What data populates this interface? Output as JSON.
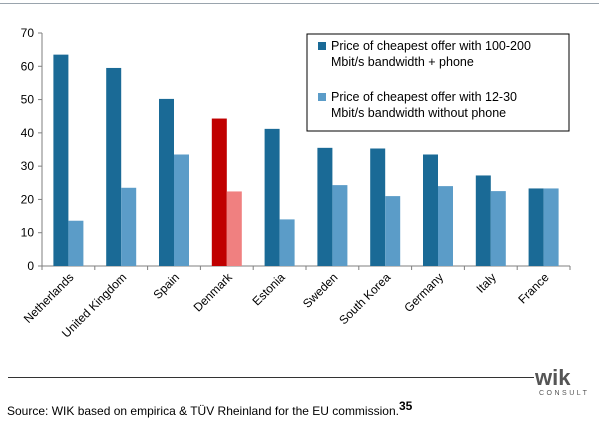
{
  "chart_data": {
    "type": "bar",
    "categories": [
      "Netherlands",
      "United Kingdom",
      "Spain",
      "Denmark",
      "Estonia",
      "Sweden",
      "South Korea",
      "Germany",
      "Italy",
      "France"
    ],
    "series": [
      {
        "name": "Price of cheapest offer with 100-200 Mbit/s bandwidth + phone",
        "values": [
          63.5,
          59.5,
          50.2,
          44.3,
          41.2,
          35.5,
          35.3,
          33.5,
          27.2,
          23.3
        ]
      },
      {
        "name": "Price of cheapest offer with 12-30 Mbit/s bandwidth without phone",
        "values": [
          13.6,
          23.5,
          33.5,
          22.4,
          14.0,
          24.3,
          21.0,
          24.0,
          22.5,
          23.3
        ]
      }
    ],
    "ylim": [
      0,
      70
    ],
    "yticks": [
      0,
      10,
      20,
      30,
      40,
      50,
      60,
      70
    ],
    "grid": false,
    "legend_position": "top-right",
    "legend_lines": [
      [
        "Price of cheapest offer with 100-200",
        "Mbit/s bandwidth + phone"
      ],
      [
        "Price of cheapest offer with 12-30",
        "Mbit/s bandwidth without phone"
      ]
    ],
    "highlight_category": "Denmark"
  },
  "colors": {
    "series1": "#1a6a96",
    "series2": "#5b9cc8",
    "highlight1": "#c00000",
    "highlight2": "#f08080",
    "axis": "#7f7f7f"
  },
  "logo": {
    "word": "wik",
    "sub": "CONSULT"
  },
  "source": {
    "text": "Source: WIK based on empirica & TÜV Rheinland for the EU commission.",
    "note": "35"
  }
}
